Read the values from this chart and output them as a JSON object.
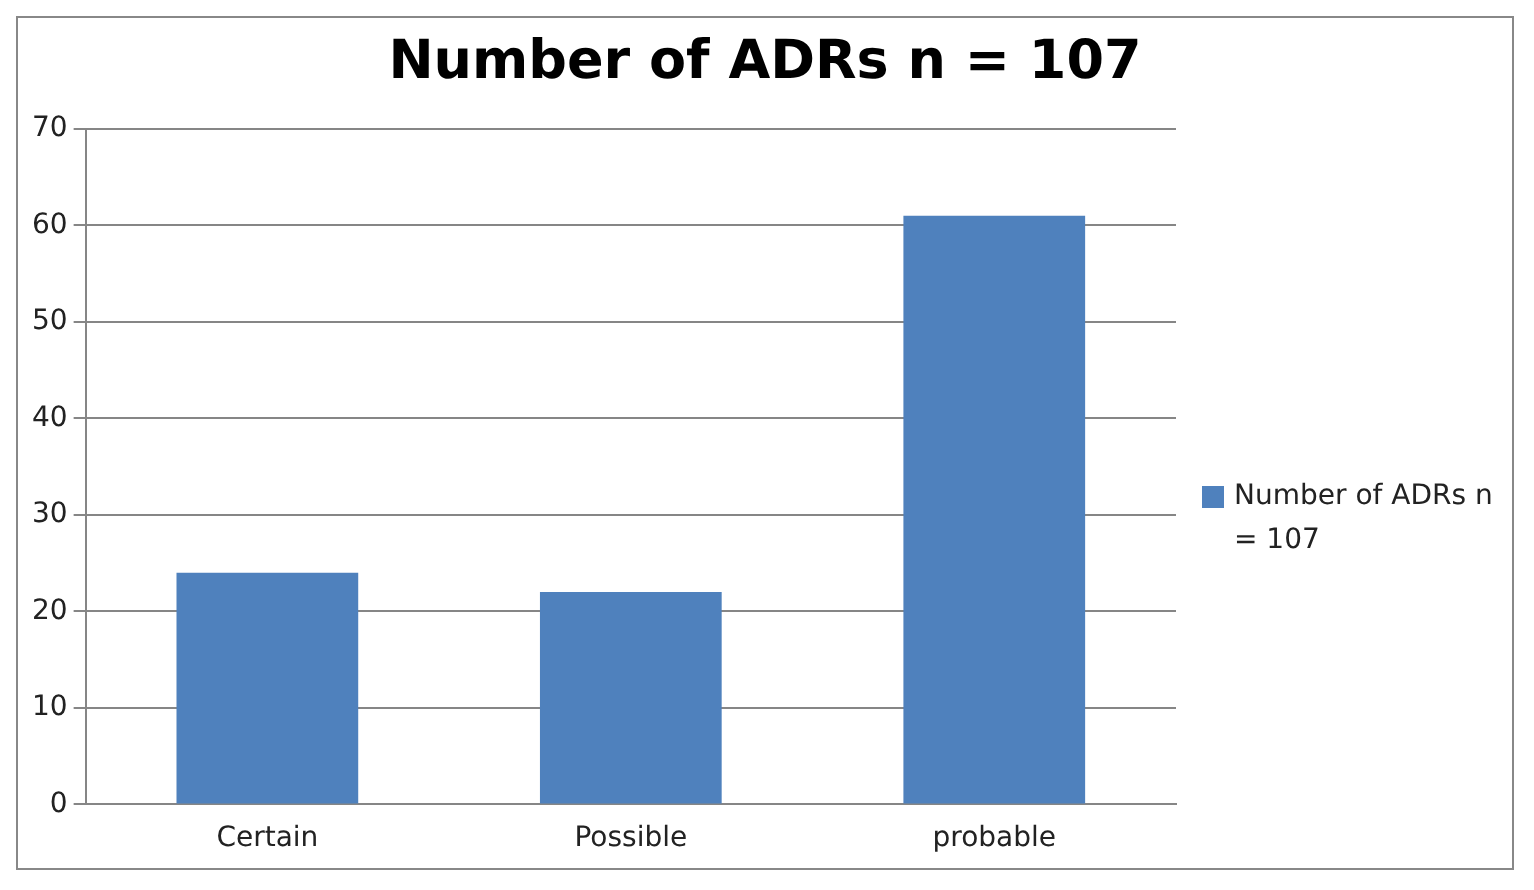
{
  "chart_data": {
    "type": "bar",
    "title": "Number of ADRs n = 107",
    "categories": [
      "Certain",
      "Possible",
      "probable"
    ],
    "series": [
      {
        "name": "Number of ADRs n = 107",
        "color": "#4f81bd",
        "values": [
          24,
          22,
          61
        ]
      }
    ],
    "ylim": [
      0,
      70
    ],
    "yticks": [
      0,
      10,
      20,
      30,
      40,
      50,
      60,
      70
    ],
    "grid": "y",
    "legend": "right"
  }
}
